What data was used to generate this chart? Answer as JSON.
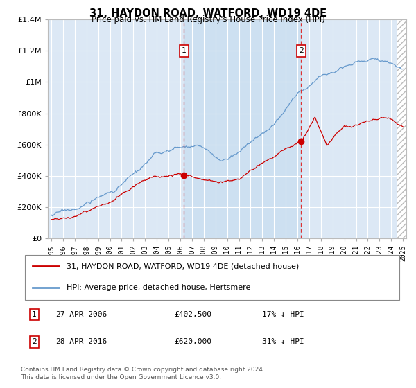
{
  "title": "31, HAYDON ROAD, WATFORD, WD19 4DE",
  "subtitle": "Price paid vs. HM Land Registry's House Price Index (HPI)",
  "hpi_label": "HPI: Average price, detached house, Hertsmere",
  "property_label": "31, HAYDON ROAD, WATFORD, WD19 4DE (detached house)",
  "footnote": "Contains HM Land Registry data © Crown copyright and database right 2024.\nThis data is licensed under the Open Government Licence v3.0.",
  "sale1": {
    "date": "27-APR-2006",
    "price": 402500,
    "hpi_diff": "17% ↓ HPI",
    "x": 2006.32
  },
  "sale2": {
    "date": "28-APR-2016",
    "price": 620000,
    "hpi_diff": "31% ↓ HPI",
    "x": 2016.32
  },
  "ylim": [
    0,
    1400000
  ],
  "xlim": [
    1994.7,
    2025.3
  ],
  "property_color": "#cc0000",
  "hpi_color": "#6699cc",
  "bg_color": "#dce8f5",
  "shade_color": "#c8ddf0",
  "hatch_color": "#bbbbbb"
}
